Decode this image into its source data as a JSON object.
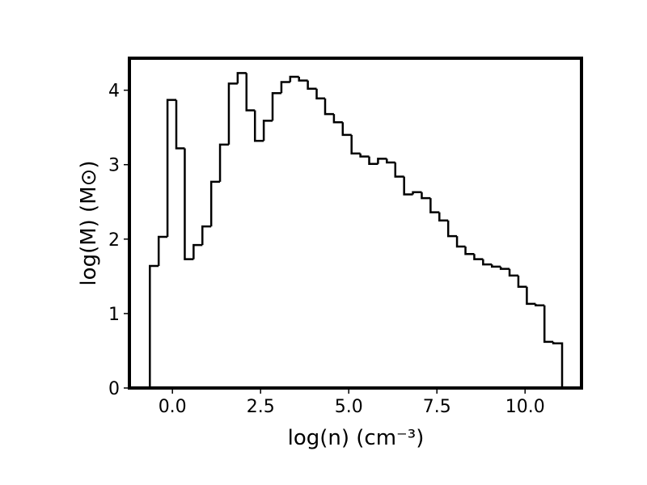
{
  "chart_data": {
    "type": "histogram",
    "x_label": "log(n) (cm⁻³)",
    "y_label": "log(M) (M⊙)",
    "bins": [
      -0.64,
      -0.39,
      -0.14,
      0.11,
      0.35,
      0.6,
      0.85,
      1.1,
      1.35,
      1.6,
      1.85,
      2.1,
      2.34,
      2.59,
      2.84,
      3.09,
      3.34,
      3.59,
      3.84,
      4.09,
      4.33,
      4.58,
      4.83,
      5.08,
      5.33,
      5.58,
      5.83,
      6.08,
      6.32,
      6.57,
      6.82,
      7.07,
      7.32,
      7.57,
      7.82,
      8.07,
      8.31,
      8.56,
      8.81,
      9.06,
      9.31,
      9.56,
      9.81,
      10.05,
      10.3,
      10.55,
      10.8,
      11.05
    ],
    "values": [
      1.64,
      2.03,
      3.87,
      3.22,
      1.73,
      1.92,
      2.17,
      2.77,
      3.27,
      4.09,
      4.23,
      3.73,
      3.32,
      3.59,
      3.96,
      4.11,
      4.18,
      4.13,
      4.02,
      3.89,
      3.68,
      3.57,
      3.4,
      3.15,
      3.11,
      3.01,
      3.08,
      3.03,
      2.84,
      2.6,
      2.63,
      2.55,
      2.36,
      2.25,
      2.04,
      1.9,
      1.8,
      1.73,
      1.66,
      1.63,
      1.6,
      1.51,
      1.36,
      1.13,
      1.11,
      0.62,
      0.6
    ],
    "color": "#000000",
    "xlim": [
      -1.22,
      11.6
    ],
    "ylim": [
      0,
      4.43
    ],
    "xticks": [
      {
        "value": 0,
        "label": "0.0"
      },
      {
        "value": 2.5,
        "label": "2.5"
      },
      {
        "value": 5,
        "label": "5.0"
      },
      {
        "value": 7.5,
        "label": "7.5"
      },
      {
        "value": 10,
        "label": "10.0"
      }
    ],
    "yticks": [
      0,
      1,
      2,
      3,
      4
    ]
  }
}
